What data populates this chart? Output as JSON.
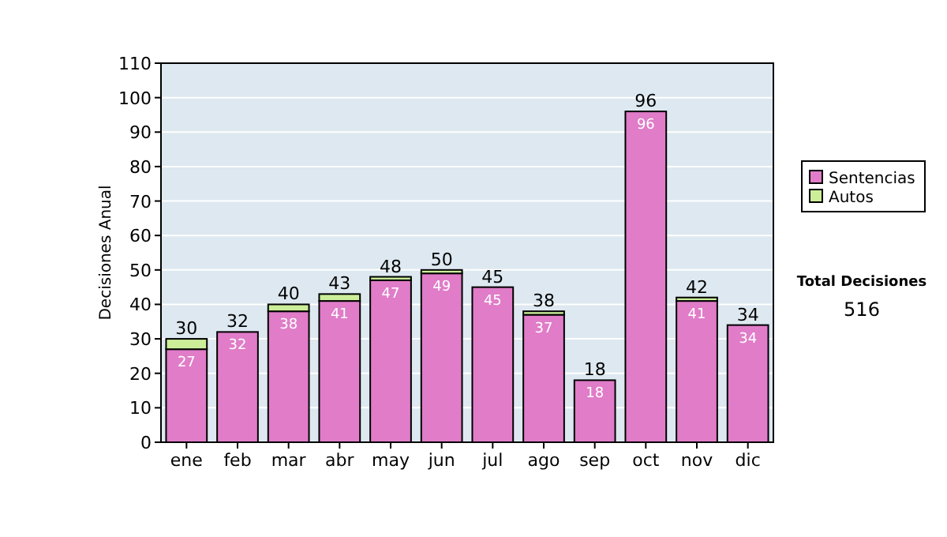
{
  "chart_data": {
    "type": "bar",
    "stacked": true,
    "ylabel": "Decisiones Anual",
    "categories": [
      "ene",
      "feb",
      "mar",
      "abr",
      "may",
      "jun",
      "jul",
      "ago",
      "sep",
      "oct",
      "nov",
      "dic"
    ],
    "series": [
      {
        "name": "Sentencias",
        "color": "#e07cc8",
        "values": [
          27,
          32,
          38,
          41,
          47,
          49,
          45,
          37,
          18,
          96,
          41,
          34
        ],
        "value_labels": [
          "27",
          "32",
          "38",
          "41",
          "47",
          "49",
          "45",
          "37",
          "18",
          "96",
          "41",
          "34"
        ]
      },
      {
        "name": "Autos",
        "color": "#ccee99",
        "values": [
          3,
          0,
          2,
          2,
          1,
          1,
          0,
          1,
          0,
          0,
          1,
          0
        ]
      }
    ],
    "totals": [
      "30",
      "32",
      "40",
      "43",
      "48",
      "50",
      "45",
      "38",
      "18",
      "96",
      "42",
      "34"
    ],
    "ylim": [
      0,
      110
    ],
    "yticks": [
      0,
      10,
      20,
      30,
      40,
      50,
      60,
      70,
      80,
      90,
      100,
      110
    ],
    "grid": "y",
    "legend": "right",
    "annotations": [
      "Total Decisiones",
      "516"
    ]
  }
}
